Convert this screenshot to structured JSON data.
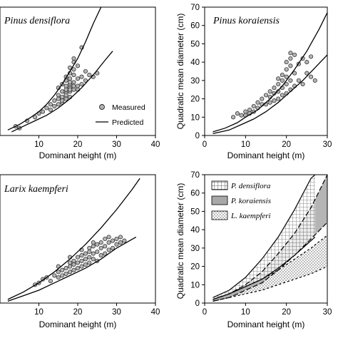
{
  "figure": {
    "colors": {
      "axis": "#000000",
      "point_fill": "#b4b4b4",
      "point_stroke": "#222222",
      "line": "#000000"
    }
  },
  "chart_data": [
    {
      "type": "scatter",
      "panel": "top-left",
      "title": "Pinus densiflora",
      "xlabel": "Dominant height (m)",
      "ylabel": "",
      "xlim": [
        0,
        40
      ],
      "ylim": [
        0,
        70
      ],
      "xticks": [
        "10",
        "20",
        "30",
        "40"
      ],
      "yticks": [],
      "legend": {
        "placement": "bottom-right",
        "items": [
          "Measured",
          "Predicted"
        ]
      },
      "predicted_upper": [
        [
          2,
          3
        ],
        [
          5,
          6
        ],
        [
          8,
          10
        ],
        [
          10,
          13
        ],
        [
          12,
          17
        ],
        [
          14,
          22
        ],
        [
          16,
          28
        ],
        [
          18,
          35
        ],
        [
          20,
          42
        ],
        [
          22,
          51
        ],
        [
          24,
          61
        ],
        [
          26,
          70
        ]
      ],
      "predicted_lower": [
        [
          3,
          2
        ],
        [
          6,
          5
        ],
        [
          9,
          8
        ],
        [
          12,
          11
        ],
        [
          15,
          15
        ],
        [
          18,
          20
        ],
        [
          21,
          26
        ],
        [
          24,
          33
        ],
        [
          27,
          41
        ],
        [
          29,
          46
        ]
      ],
      "measured": [
        [
          4,
          5
        ],
        [
          5,
          4
        ],
        [
          7,
          8
        ],
        [
          9,
          10
        ],
        [
          10,
          12
        ],
        [
          11,
          13
        ],
        [
          12,
          15
        ],
        [
          13,
          14
        ],
        [
          13,
          17
        ],
        [
          14,
          16
        ],
        [
          14,
          19
        ],
        [
          15,
          17
        ],
        [
          15,
          20
        ],
        [
          15,
          22
        ],
        [
          16,
          18
        ],
        [
          16,
          21
        ],
        [
          16,
          24
        ],
        [
          16,
          19
        ],
        [
          17,
          20
        ],
        [
          17,
          23
        ],
        [
          17,
          25
        ],
        [
          17,
          27
        ],
        [
          17,
          30
        ],
        [
          17,
          22
        ],
        [
          18,
          21
        ],
        [
          18,
          24
        ],
        [
          18,
          26
        ],
        [
          18,
          28
        ],
        [
          18,
          31
        ],
        [
          18,
          34
        ],
        [
          18,
          37
        ],
        [
          18,
          25
        ],
        [
          19,
          25
        ],
        [
          19,
          29
        ],
        [
          19,
          33
        ],
        [
          19,
          36
        ],
        [
          19,
          40
        ],
        [
          19,
          42
        ],
        [
          19,
          27
        ],
        [
          20,
          27
        ],
        [
          20,
          31
        ],
        [
          20,
          38
        ],
        [
          20,
          25
        ],
        [
          21,
          28
        ],
        [
          21,
          32
        ],
        [
          21,
          48
        ],
        [
          22,
          35
        ],
        [
          22,
          30
        ],
        [
          23,
          33
        ],
        [
          24,
          32
        ],
        [
          25,
          34
        ],
        [
          15,
          26
        ],
        [
          16,
          28
        ],
        [
          17,
          32
        ],
        [
          18,
          29
        ]
      ]
    },
    {
      "type": "scatter",
      "panel": "top-right",
      "title": "Pinus koraiensis",
      "xlabel": "Dominant height (m)",
      "ylabel": "Quadratic mean diameter (cm)",
      "xlim": [
        0,
        30
      ],
      "ylim": [
        0,
        70
      ],
      "xticks": [
        "0",
        "10",
        "20",
        "30"
      ],
      "yticks": [
        "0",
        "10",
        "20",
        "30",
        "40",
        "50",
        "60",
        "70"
      ],
      "predicted_upper": [
        [
          2,
          2
        ],
        [
          5,
          4
        ],
        [
          8,
          7
        ],
        [
          10,
          10
        ],
        [
          13,
          14
        ],
        [
          16,
          20
        ],
        [
          19,
          27
        ],
        [
          22,
          36
        ],
        [
          25,
          46
        ],
        [
          28,
          58
        ],
        [
          30,
          67
        ]
      ],
      "predicted_lower": [
        [
          2,
          1
        ],
        [
          6,
          3
        ],
        [
          9,
          6
        ],
        [
          12,
          9
        ],
        [
          15,
          13
        ],
        [
          18,
          18
        ],
        [
          21,
          24
        ],
        [
          24,
          30
        ],
        [
          27,
          37
        ],
        [
          30,
          44
        ]
      ],
      "measured": [
        [
          7,
          10
        ],
        [
          8,
          12
        ],
        [
          9,
          11
        ],
        [
          10,
          13
        ],
        [
          10,
          11
        ],
        [
          11,
          12
        ],
        [
          11,
          14
        ],
        [
          12,
          16
        ],
        [
          12,
          13
        ],
        [
          13,
          15
        ],
        [
          13,
          18
        ],
        [
          14,
          17
        ],
        [
          14,
          20
        ],
        [
          15,
          17
        ],
        [
          15,
          22
        ],
        [
          16,
          18
        ],
        [
          16,
          21
        ],
        [
          16,
          24
        ],
        [
          17,
          19
        ],
        [
          17,
          23
        ],
        [
          17,
          26
        ],
        [
          18,
          20
        ],
        [
          18,
          24
        ],
        [
          18,
          28
        ],
        [
          18,
          31
        ],
        [
          19,
          22
        ],
        [
          19,
          26
        ],
        [
          19,
          30
        ],
        [
          19,
          33
        ],
        [
          20,
          23
        ],
        [
          20,
          28
        ],
        [
          20,
          32
        ],
        [
          20,
          36
        ],
        [
          20,
          40
        ],
        [
          21,
          25
        ],
        [
          21,
          30
        ],
        [
          21,
          38
        ],
        [
          21,
          42
        ],
        [
          21,
          45
        ],
        [
          22,
          27
        ],
        [
          22,
          34
        ],
        [
          22,
          44
        ],
        [
          23,
          30
        ],
        [
          23,
          39
        ],
        [
          24,
          42
        ],
        [
          24,
          28
        ],
        [
          25,
          40
        ],
        [
          25,
          34
        ],
        [
          26,
          32
        ],
        [
          26,
          43
        ],
        [
          27,
          30
        ]
      ]
    },
    {
      "type": "scatter",
      "panel": "bottom-left",
      "title": "Larix kaempferi",
      "xlabel": "Dominant height (m)",
      "ylabel": "",
      "xlim": [
        0,
        40
      ],
      "ylim": [
        0,
        70
      ],
      "xticks": [
        "10",
        "20",
        "30",
        "40"
      ],
      "yticks": [],
      "predicted_upper": [
        [
          2,
          2
        ],
        [
          6,
          6
        ],
        [
          10,
          11
        ],
        [
          14,
          17
        ],
        [
          18,
          24
        ],
        [
          22,
          32
        ],
        [
          26,
          41
        ],
        [
          30,
          51
        ],
        [
          34,
          62
        ],
        [
          36,
          68
        ]
      ],
      "predicted_lower": [
        [
          2,
          1
        ],
        [
          6,
          4
        ],
        [
          10,
          7
        ],
        [
          14,
          11
        ],
        [
          18,
          15
        ],
        [
          22,
          19
        ],
        [
          26,
          24
        ],
        [
          30,
          30
        ],
        [
          35,
          36
        ]
      ],
      "measured": [
        [
          11,
          13
        ],
        [
          12,
          14
        ],
        [
          13,
          12
        ],
        [
          14,
          15
        ],
        [
          15,
          14
        ],
        [
          15,
          17
        ],
        [
          16,
          15
        ],
        [
          16,
          18
        ],
        [
          17,
          16
        ],
        [
          17,
          19
        ],
        [
          18,
          17
        ],
        [
          18,
          20
        ],
        [
          18,
          22
        ],
        [
          19,
          18
        ],
        [
          19,
          21
        ],
        [
          19,
          23
        ],
        [
          20,
          19
        ],
        [
          20,
          22
        ],
        [
          20,
          25
        ],
        [
          21,
          20
        ],
        [
          21,
          23
        ],
        [
          21,
          26
        ],
        [
          22,
          21
        ],
        [
          22,
          24
        ],
        [
          22,
          27
        ],
        [
          23,
          22
        ],
        [
          23,
          25
        ],
        [
          23,
          28
        ],
        [
          23,
          30
        ],
        [
          24,
          24
        ],
        [
          24,
          27
        ],
        [
          24,
          31
        ],
        [
          25,
          23
        ],
        [
          25,
          28
        ],
        [
          25,
          32
        ],
        [
          26,
          26
        ],
        [
          26,
          30
        ],
        [
          26,
          33
        ],
        [
          27,
          27
        ],
        [
          27,
          31
        ],
        [
          27,
          35
        ],
        [
          28,
          29
        ],
        [
          28,
          33
        ],
        [
          28,
          36
        ],
        [
          29,
          30
        ],
        [
          29,
          34
        ],
        [
          30,
          32
        ],
        [
          30,
          35
        ],
        [
          31,
          33
        ],
        [
          31,
          36
        ],
        [
          32,
          34
        ],
        [
          15,
          20
        ],
        [
          18,
          25
        ],
        [
          21,
          29
        ],
        [
          24,
          33
        ],
        [
          9,
          10
        ],
        [
          10,
          11
        ]
      ]
    },
    {
      "type": "area",
      "panel": "bottom-right",
      "title": "",
      "xlabel": "Dominant height (m)",
      "ylabel": "Quadratic mean diameter (cm)",
      "xlim": [
        0,
        30
      ],
      "ylim": [
        0,
        70
      ],
      "xticks": [
        "0",
        "10",
        "20",
        "30"
      ],
      "yticks": [
        "0",
        "10",
        "20",
        "30",
        "40",
        "50",
        "60",
        "70"
      ],
      "legend": {
        "placement": "top-left",
        "items": [
          "P. densiflora",
          "P. koraiensis",
          "L. kaempferi"
        ]
      },
      "series": [
        {
          "name": "P. densiflora",
          "pattern": "grid",
          "upper": [
            [
              2,
              3
            ],
            [
              6,
              7
            ],
            [
              10,
              14
            ],
            [
              14,
              24
            ],
            [
              18,
              36
            ],
            [
              22,
              51
            ],
            [
              26,
              68
            ],
            [
              27,
              70
            ]
          ],
          "lower": [
            [
              2,
              2
            ],
            [
              6,
              5
            ],
            [
              10,
              9
            ],
            [
              14,
              13
            ],
            [
              18,
              19
            ],
            [
              22,
              26
            ],
            [
              26,
              34
            ],
            [
              27,
              36
            ]
          ]
        },
        {
          "name": "P. koraiensis",
          "pattern": "solid",
          "upper": [
            [
              2,
              2
            ],
            [
              6,
              5
            ],
            [
              10,
              10
            ],
            [
              14,
              17
            ],
            [
              18,
              27
            ],
            [
              22,
              38
            ],
            [
              26,
              52
            ],
            [
              30,
              70
            ]
          ],
          "lower": [
            [
              2,
              1
            ],
            [
              6,
              3
            ],
            [
              10,
              7
            ],
            [
              14,
              11
            ],
            [
              18,
              18
            ],
            [
              22,
              26
            ],
            [
              26,
              35
            ],
            [
              30,
              44
            ]
          ]
        },
        {
          "name": "L. kaempferi",
          "pattern": "dots",
          "upper": [
            [
              2,
              2
            ],
            [
              6,
              5
            ],
            [
              10,
              9
            ],
            [
              14,
              13
            ],
            [
              18,
              18
            ],
            [
              22,
              24
            ],
            [
              26,
              30
            ],
            [
              30,
              37
            ],
            [
              32,
              40
            ]
          ],
          "lower": [
            [
              2,
              1
            ],
            [
              6,
              3
            ],
            [
              10,
              5
            ],
            [
              14,
              7
            ],
            [
              18,
              10
            ],
            [
              22,
              13
            ],
            [
              26,
              16
            ],
            [
              30,
              20
            ],
            [
              32,
              22
            ]
          ]
        }
      ]
    }
  ]
}
